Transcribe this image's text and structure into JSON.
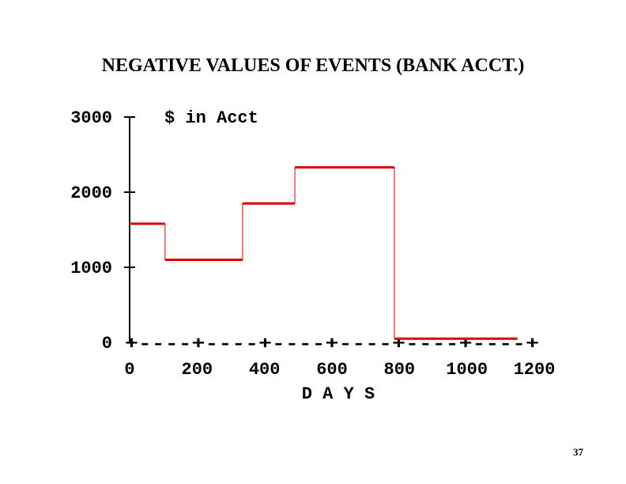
{
  "slide": {
    "title": "NEGATIVE VALUES OF EVENTS (BANK ACCT.)",
    "page_number": "37"
  },
  "chart_data": {
    "type": "line",
    "step": true,
    "title": "NEGATIVE VALUES OF EVENTS (BANK ACCT.)",
    "ylabel": "$ in Acct",
    "xlabel": "D A Y S",
    "xlim": [
      0,
      1200
    ],
    "ylim": [
      0,
      3000
    ],
    "x_ticks": [
      0,
      200,
      400,
      600,
      800,
      1000,
      1200
    ],
    "x_tick_labels": [
      "0",
      "200",
      "400",
      "600",
      "800",
      "1000",
      "1200"
    ],
    "y_ticks": [
      0,
      1000,
      2000,
      3000
    ],
    "y_tick_labels": [
      "0",
      "1000",
      "2000",
      "3000"
    ],
    "x_axis_style": "+----+----+----+----+----+----+",
    "series": [
      {
        "color": "#e00000",
        "segments": [
          {
            "x_start": 0,
            "x_end": 105,
            "y": 1580
          },
          {
            "x_start": 105,
            "x_end": 335,
            "y": 1100
          },
          {
            "x_start": 335,
            "x_end": 490,
            "y": 1850
          },
          {
            "x_start": 490,
            "x_end": 785,
            "y": 2330
          },
          {
            "x_start": 785,
            "x_end": 1150,
            "y": 50
          }
        ]
      }
    ]
  }
}
